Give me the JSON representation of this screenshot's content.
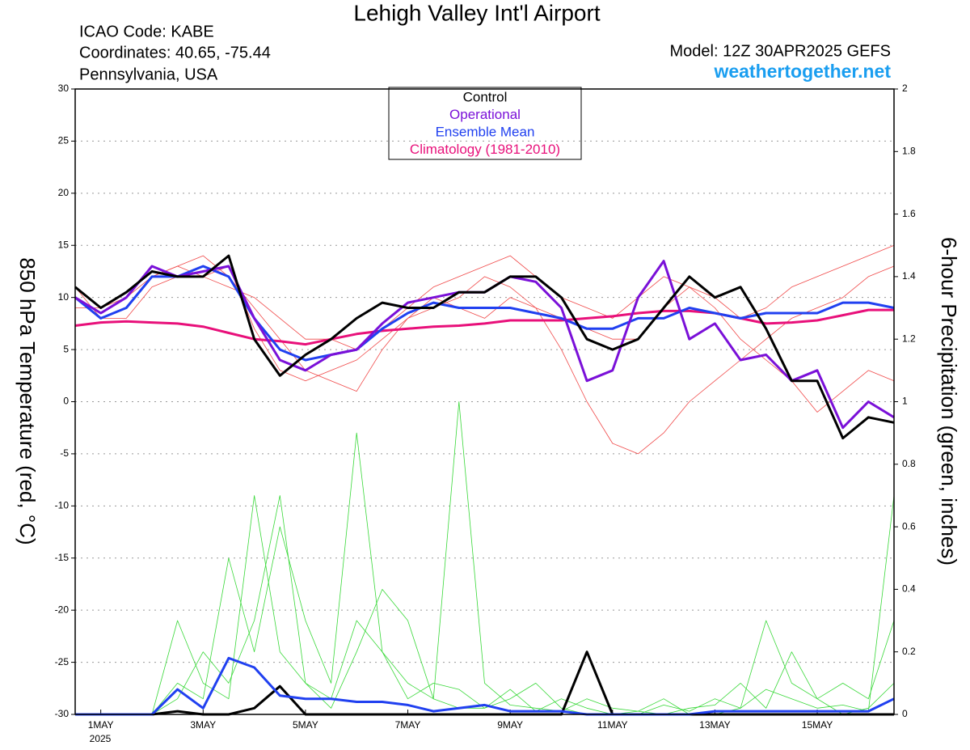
{
  "chart_data": {
    "type": "line",
    "title": "Lehigh Valley Int'l Airport",
    "info": [
      "ICAO Code: KABE",
      "Coordinates: 40.65, -75.44",
      "Pennsylvania, USA"
    ],
    "model": "Model: 12Z 30APR2025 GEFS",
    "site": "weathertogether.net",
    "ylabel": "850 hPa Temperature (red, °C)",
    "y2label": "6-hour Precipitation (green, inches)",
    "year_label": "2025",
    "x": [
      -0.5,
      0,
      0.5,
      1,
      1.5,
      2,
      2.5,
      3,
      3.5,
      4,
      4.5,
      5,
      5.5,
      6,
      6.5,
      7,
      7.5,
      8,
      8.5,
      9,
      9.5,
      10,
      10.5,
      11,
      11.5,
      12,
      12.5,
      13,
      13.5,
      14,
      14.5,
      15,
      15.5
    ],
    "xlim": [
      -0.5,
      15.5
    ],
    "xticks": [
      {
        "value": 0,
        "label": "1MAY"
      },
      {
        "value": 2,
        "label": "3MAY"
      },
      {
        "value": 4,
        "label": "5MAY"
      },
      {
        "value": 6,
        "label": "7MAY"
      },
      {
        "value": 8,
        "label": "9MAY"
      },
      {
        "value": 10,
        "label": "11MAY"
      },
      {
        "value": 12,
        "label": "13MAY"
      },
      {
        "value": 14,
        "label": "15MAY"
      }
    ],
    "ylim": [
      -30,
      30
    ],
    "yticks": [
      -30,
      -25,
      -20,
      -15,
      -10,
      -5,
      0,
      5,
      10,
      15,
      20,
      25,
      30
    ],
    "y2lim": [
      0,
      2
    ],
    "y2ticks": [
      0,
      0.2,
      0.4,
      0.6,
      0.8,
      1,
      1.2,
      1.4,
      1.6,
      1.8,
      2
    ],
    "grid": true,
    "members": [
      {
        "color": "#f04848",
        "values": [
          10,
          8,
          9,
          12,
          13,
          12,
          13,
          7,
          3,
          2,
          3,
          4,
          6,
          8,
          10,
          9,
          8,
          10,
          9,
          8,
          7,
          6,
          6,
          9,
          11,
          10,
          8,
          9,
          11,
          12,
          13,
          14,
          15
        ]
      },
      {
        "color": "#f04848",
        "values": [
          9,
          9,
          10,
          12,
          13,
          14,
          12,
          9,
          6,
          3,
          2,
          1,
          5,
          8,
          9,
          10,
          12,
          11,
          9,
          5,
          0,
          -4,
          -5,
          -3,
          0,
          2,
          4,
          6,
          8,
          9,
          10,
          12,
          13
        ]
      },
      {
        "color": "#f04848",
        "values": [
          11,
          8,
          8,
          11,
          12,
          12,
          11,
          10,
          8,
          6,
          6,
          5,
          7,
          9,
          11,
          12,
          13,
          14,
          12,
          10,
          9,
          8,
          10,
          12,
          11,
          9,
          6,
          4,
          2,
          -1,
          1,
          3,
          2
        ]
      }
    ],
    "precip_members": [
      {
        "color": "#38d838",
        "axis": "y2",
        "values": [
          0,
          0,
          0,
          0,
          0.3,
          0.1,
          0.05,
          0.7,
          0.2,
          0.1,
          0.05,
          0.3,
          0.2,
          0.05,
          0.1,
          0.08,
          0.02,
          0.05,
          0.1,
          0.02,
          0,
          0,
          0.01,
          0.05,
          0,
          0,
          0.02,
          0.3,
          0.1,
          0.05,
          0,
          0.02,
          0.1
        ]
      },
      {
        "color": "#38d838",
        "axis": "y2",
        "values": [
          0,
          0,
          0,
          0,
          0.1,
          0.05,
          0.5,
          0.2,
          0.6,
          0.3,
          0.1,
          0.9,
          0.2,
          0.1,
          0.05,
          0.02,
          0.02,
          0.08,
          0.01,
          0.05,
          0.02,
          0,
          0,
          0.03,
          0.01,
          0.05,
          0.02,
          0.08,
          0.05,
          0.02,
          0.03,
          0.01,
          0.7
        ]
      },
      {
        "color": "#38d838",
        "axis": "y2",
        "values": [
          0,
          0,
          0,
          0,
          0.05,
          0.2,
          0.1,
          0.3,
          0.7,
          0.1,
          0.02,
          0.2,
          0.4,
          0.3,
          0.05,
          1,
          0.1,
          0.03,
          0.02,
          0.01,
          0.05,
          0.02,
          0.01,
          0,
          0.02,
          0.03,
          0.1,
          0.02,
          0.2,
          0.05,
          0.1,
          0.05,
          0.3
        ]
      }
    ],
    "series": [
      {
        "name": "Control",
        "color": "#000000",
        "values": [
          11,
          9,
          10.5,
          12.5,
          12,
          12,
          14,
          6,
          2.5,
          4.5,
          6,
          8,
          9.5,
          9,
          9,
          10.5,
          10.5,
          12,
          12,
          10,
          6,
          5,
          6,
          9,
          12,
          10,
          11,
          7,
          2,
          2,
          -3.5,
          -1.5,
          -2
        ]
      },
      {
        "name": "Operational",
        "color": "#7a10d8",
        "values": [
          10,
          8.5,
          10,
          13,
          12,
          12.5,
          13,
          8,
          4,
          3,
          4.5,
          5,
          7.5,
          9.5,
          10,
          10.5,
          10.5,
          12,
          11.5,
          9,
          2,
          3,
          10,
          13.5,
          6,
          7.5,
          4,
          4.5,
          2,
          3,
          -2.5,
          0,
          -1.5
        ]
      },
      {
        "name": "Ensemble Mean",
        "color": "#2040f0",
        "values": [
          10,
          8,
          9,
          12,
          12,
          13,
          12,
          8,
          5,
          4,
          4.5,
          5,
          7,
          8.5,
          9.5,
          9,
          9,
          9,
          8.5,
          8,
          7,
          7,
          8,
          8,
          9,
          8.5,
          8,
          8.5,
          8.5,
          8.5,
          9.5,
          9.5,
          9
        ]
      },
      {
        "name": "Climatology (1981-2010)",
        "color": "#e8107a",
        "values": [
          7.3,
          7.6,
          7.7,
          7.6,
          7.5,
          7.2,
          6.6,
          6,
          5.8,
          5.5,
          6,
          6.5,
          6.8,
          7,
          7.2,
          7.3,
          7.5,
          7.8,
          7.8,
          7.8,
          8,
          8.2,
          8.5,
          8.7,
          8.7,
          8.5,
          8,
          7.5,
          7.6,
          7.8,
          8.3,
          8.8,
          8.8
        ]
      }
    ],
    "precip_series": [
      {
        "color": "#000000",
        "axis": "y2",
        "values": [
          0,
          0,
          0,
          0,
          0.01,
          0,
          0,
          0.02,
          0.09,
          0,
          0,
          0,
          0,
          0,
          0,
          0,
          0,
          0,
          0,
          0,
          0.2,
          0,
          0,
          0,
          0,
          0,
          0,
          0,
          0,
          0,
          0,
          0,
          0
        ]
      },
      {
        "color": "#2040f0",
        "axis": "y2",
        "values": [
          0,
          0,
          0,
          0,
          0.08,
          0.02,
          0.18,
          0.15,
          0.06,
          0.05,
          0.05,
          0.04,
          0.04,
          0.03,
          0.01,
          0.02,
          0.03,
          0.01,
          0.01,
          0.01,
          0,
          0,
          0,
          0,
          0,
          0.01,
          0.01,
          0.01,
          0.01,
          0.01,
          0.01,
          0.01,
          0.05
        ]
      }
    ]
  }
}
